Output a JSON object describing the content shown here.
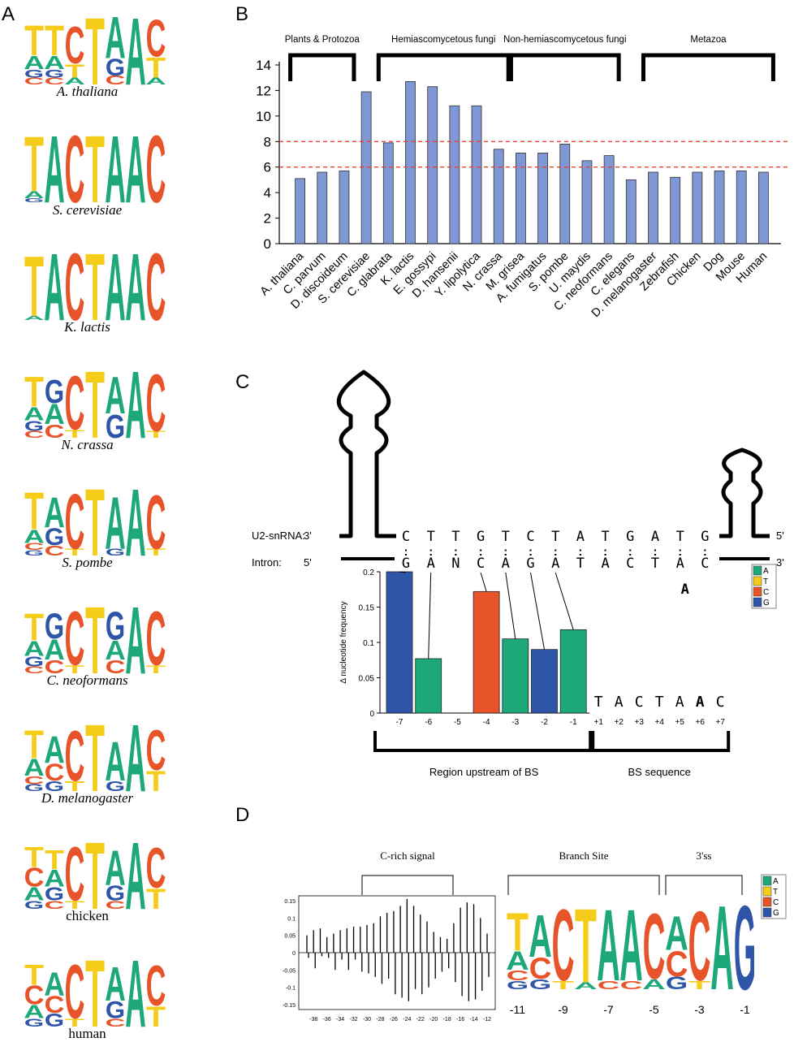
{
  "panels": {
    "a": "A",
    "b": "B",
    "c": "C",
    "d": "D"
  },
  "colors": {
    "A": "#1ea87a",
    "T": "#f5cc1a",
    "C": "#e8542a",
    "G": "#2f55a8",
    "bar_b": "#7f97d4",
    "dashed": "#e8432a"
  },
  "logos": [
    {
      "species": "A. thaliana",
      "italic": true,
      "cols": [
        [
          "T",
          "A",
          "G",
          "C"
        ],
        [
          "T",
          "A",
          "G",
          "C"
        ],
        [
          "C",
          "T",
          "A"
        ],
        [
          "T"
        ],
        [
          "A",
          "G",
          "C"
        ],
        [
          "A"
        ],
        [
          "C",
          "T",
          "A"
        ]
      ]
    },
    {
      "species": "S. cerevisiae",
      "italic": true,
      "cols": [
        [
          "T",
          "A",
          "G"
        ],
        [
          "A"
        ],
        [
          "C"
        ],
        [
          "T"
        ],
        [
          "A"
        ],
        [
          "A"
        ],
        [
          "C"
        ]
      ]
    },
    {
      "species": "K. lactis",
      "italic": true,
      "cols": [
        [
          "T",
          "A"
        ],
        [
          "A"
        ],
        [
          "C"
        ],
        [
          "T"
        ],
        [
          "A"
        ],
        [
          "A"
        ],
        [
          "C"
        ]
      ]
    },
    {
      "species": "N. crassa",
      "italic": true,
      "cols": [
        [
          "T",
          "A",
          "G",
          "C"
        ],
        [
          "G",
          "A",
          "C"
        ],
        [
          "C",
          "T"
        ],
        [
          "T"
        ],
        [
          "A",
          "G"
        ],
        [
          "A"
        ],
        [
          "C",
          "T"
        ]
      ]
    },
    {
      "species": "S. pombe",
      "italic": true,
      "cols": [
        [
          "T",
          "A",
          "C",
          "G"
        ],
        [
          "A",
          "G",
          "C"
        ],
        [
          "C",
          "T"
        ],
        [
          "T"
        ],
        [
          "A",
          "G"
        ],
        [
          "A"
        ],
        [
          "C",
          "T"
        ]
      ]
    },
    {
      "species": "C. neoformans",
      "italic": true,
      "cols": [
        [
          "T",
          "A",
          "G",
          "C"
        ],
        [
          "G",
          "A",
          "C"
        ],
        [
          "C",
          "T"
        ],
        [
          "T"
        ],
        [
          "G",
          "A",
          "C"
        ],
        [
          "A"
        ],
        [
          "C",
          "T"
        ]
      ]
    },
    {
      "species": "D. melanogaster",
      "italic": true,
      "cols": [
        [
          "T",
          "A",
          "C",
          "G"
        ],
        [
          "A",
          "C",
          "G"
        ],
        [
          "C",
          "T"
        ],
        [
          "T"
        ],
        [
          "A",
          "G"
        ],
        [
          "A"
        ],
        [
          "C",
          "T"
        ]
      ]
    },
    {
      "species": "chicken",
      "italic": false,
      "cols": [
        [
          "T",
          "C",
          "A",
          "G"
        ],
        [
          "T",
          "A",
          "G",
          "C"
        ],
        [
          "C",
          "T"
        ],
        [
          "T"
        ],
        [
          "A",
          "G",
          "C"
        ],
        [
          "A"
        ],
        [
          "C",
          "T"
        ]
      ]
    },
    {
      "species": "human",
      "italic": false,
      "cols": [
        [
          "T",
          "C",
          "A",
          "G"
        ],
        [
          "A",
          "C",
          "G"
        ],
        [
          "C",
          "T"
        ],
        [
          "T"
        ],
        [
          "A",
          "G",
          "C"
        ],
        [
          "A"
        ],
        [
          "C",
          "T"
        ]
      ]
    }
  ],
  "chart_data": [
    {
      "type": "bar",
      "panel": "B",
      "categories": [
        "A. thaliana",
        "C. parvum",
        "D. discoideum",
        "S. cerevisiae",
        "C. glabrata",
        "K. lactis",
        "E. gossypi",
        "D. hansenii",
        "Y. lipolytica",
        "N. crassa",
        "M. grisea",
        "A. fumigatus",
        "S. pombe",
        "U. maydis",
        "C. neoformans",
        "C. elegans",
        "D. melanogaster",
        "Zebrafish",
        "Chicken",
        "Dog",
        "Mouse",
        "Human"
      ],
      "values": [
        5.1,
        5.6,
        5.7,
        11.9,
        7.9,
        12.7,
        12.3,
        10.8,
        10.8,
        7.4,
        7.1,
        7.1,
        7.8,
        6.5,
        6.9,
        5.0,
        5.6,
        5.2,
        5.6,
        5.7,
        5.7,
        5.6
      ],
      "ylim": [
        0,
        14
      ],
      "yticks": [
        "0",
        "2",
        "4",
        "6",
        "8",
        "10",
        "12",
        "14"
      ],
      "reference_lines": [
        8,
        6
      ],
      "groups": [
        {
          "label": "Plants & Protozoa",
          "from": 0,
          "to": 2
        },
        {
          "label": "Hemiascomycetous fungi",
          "from": 4,
          "to": 9
        },
        {
          "label": "Non-hemiascomycetous fungi",
          "from": 10,
          "to": 14
        },
        {
          "label": "Metazoa",
          "from": 16,
          "to": 21
        }
      ]
    },
    {
      "type": "bar",
      "panel": "C",
      "ylabel": "Δ nucleotide frequency",
      "categories": [
        "-7",
        "-6",
        "-5",
        "-4",
        "-3",
        "-2",
        "-1"
      ],
      "values": [
        0.2,
        0.077,
        0,
        0.172,
        0.105,
        0.09,
        0.118
      ],
      "bases": [
        "G",
        "A",
        "",
        "C",
        "A",
        "G",
        "A"
      ],
      "ylim": [
        0,
        0.2
      ],
      "yticks": [
        "0",
        "0.05",
        "0.1",
        "0.15",
        "0.2"
      ]
    },
    {
      "type": "bar",
      "panel": "D",
      "categories": [
        "-38",
        "-36",
        "-34",
        "-32",
        "-30",
        "-28",
        "-26",
        "-24",
        "-22",
        "-20",
        "-18",
        "-16",
        "-14",
        "-12"
      ],
      "positions": [
        -39,
        -38,
        -37,
        -36,
        -35,
        -34,
        -33,
        -32,
        -31,
        -30,
        -29,
        -28,
        -27,
        -26,
        -25,
        -24,
        -23,
        -22,
        -21,
        -20,
        -19,
        -18,
        -17,
        -16,
        -15,
        -14,
        -13,
        -12
      ],
      "values_up": [
        0.05,
        0.065,
        0.07,
        0.045,
        0.055,
        0.065,
        0.07,
        0.075,
        0.075,
        0.08,
        0.085,
        0.105,
        0.115,
        0.12,
        0.135,
        0.155,
        0.135,
        0.11,
        0.09,
        0.06,
        0.045,
        0.04,
        0.085,
        0.13,
        0.145,
        0.14,
        0.1,
        0.055
      ],
      "values_down": [
        -0.015,
        -0.045,
        -0.01,
        -0.015,
        -0.05,
        -0.02,
        -0.05,
        -0.02,
        -0.055,
        -0.06,
        -0.07,
        -0.09,
        -0.075,
        -0.12,
        -0.13,
        -0.14,
        -0.105,
        -0.12,
        -0.1,
        -0.075,
        -0.055,
        -0.045,
        -0.085,
        -0.125,
        -0.14,
        -0.135,
        -0.11,
        -0.07
      ],
      "ylim": [
        -0.15,
        0.15
      ],
      "yticks": [
        "-0.15",
        "-0.1",
        "-0.05",
        "0",
        "0.05",
        "0.1",
        "0.15"
      ]
    }
  ],
  "panel_c": {
    "u2_label": "U2-snRNA:",
    "intron_label": "Intron:",
    "three": "3'",
    "five": "5'",
    "u2_seq": [
      "C",
      "T",
      "T",
      "G",
      "T",
      "C",
      "T",
      "A",
      "T",
      "G",
      "A",
      "T",
      "G"
    ],
    "intron_seq": [
      "G",
      "A",
      "N",
      "C",
      "A",
      "G",
      "A",
      "T",
      "A",
      "C",
      "T",
      "A",
      "C"
    ],
    "pairs": [
      ":",
      ":",
      ":",
      ":",
      ":",
      ":",
      ":",
      ":",
      ":",
      ":",
      ":",
      ":",
      ":"
    ],
    "branch_a": "A",
    "bs_seq": [
      "T",
      "A",
      "C",
      "T",
      "A",
      "A",
      "C"
    ],
    "bs_pos": [
      "+1",
      "+2",
      "+3",
      "+4",
      "+5",
      "+6",
      "+7"
    ],
    "region_label": "Region upstream of BS",
    "bs_label": "BS sequence"
  },
  "legend": [
    {
      "base": "A",
      "color": "#1ea87a"
    },
    {
      "base": "T",
      "color": "#f5cc1a"
    },
    {
      "base": "C",
      "color": "#e8542a"
    },
    {
      "base": "G",
      "color": "#2f55a8"
    }
  ],
  "panel_d": {
    "c_rich_label": "C-rich signal",
    "branch_site_label": "Branch Site",
    "ss3_label": "3'ss",
    "logo_cols": [
      [
        "T",
        "A",
        "C",
        "G"
      ],
      [
        "A",
        "C",
        "G"
      ],
      [
        "C",
        "T"
      ],
      [
        "T",
        "A"
      ],
      [
        "A",
        "C"
      ],
      [
        "A",
        "C"
      ],
      [
        "C",
        "A"
      ],
      [
        "A",
        "C",
        "G"
      ],
      [
        "C",
        "T"
      ],
      [
        "A"
      ],
      [
        "G"
      ]
    ],
    "logo_positions": [
      "-11",
      "-9",
      "-7",
      "-5",
      "-3",
      "-1"
    ]
  }
}
